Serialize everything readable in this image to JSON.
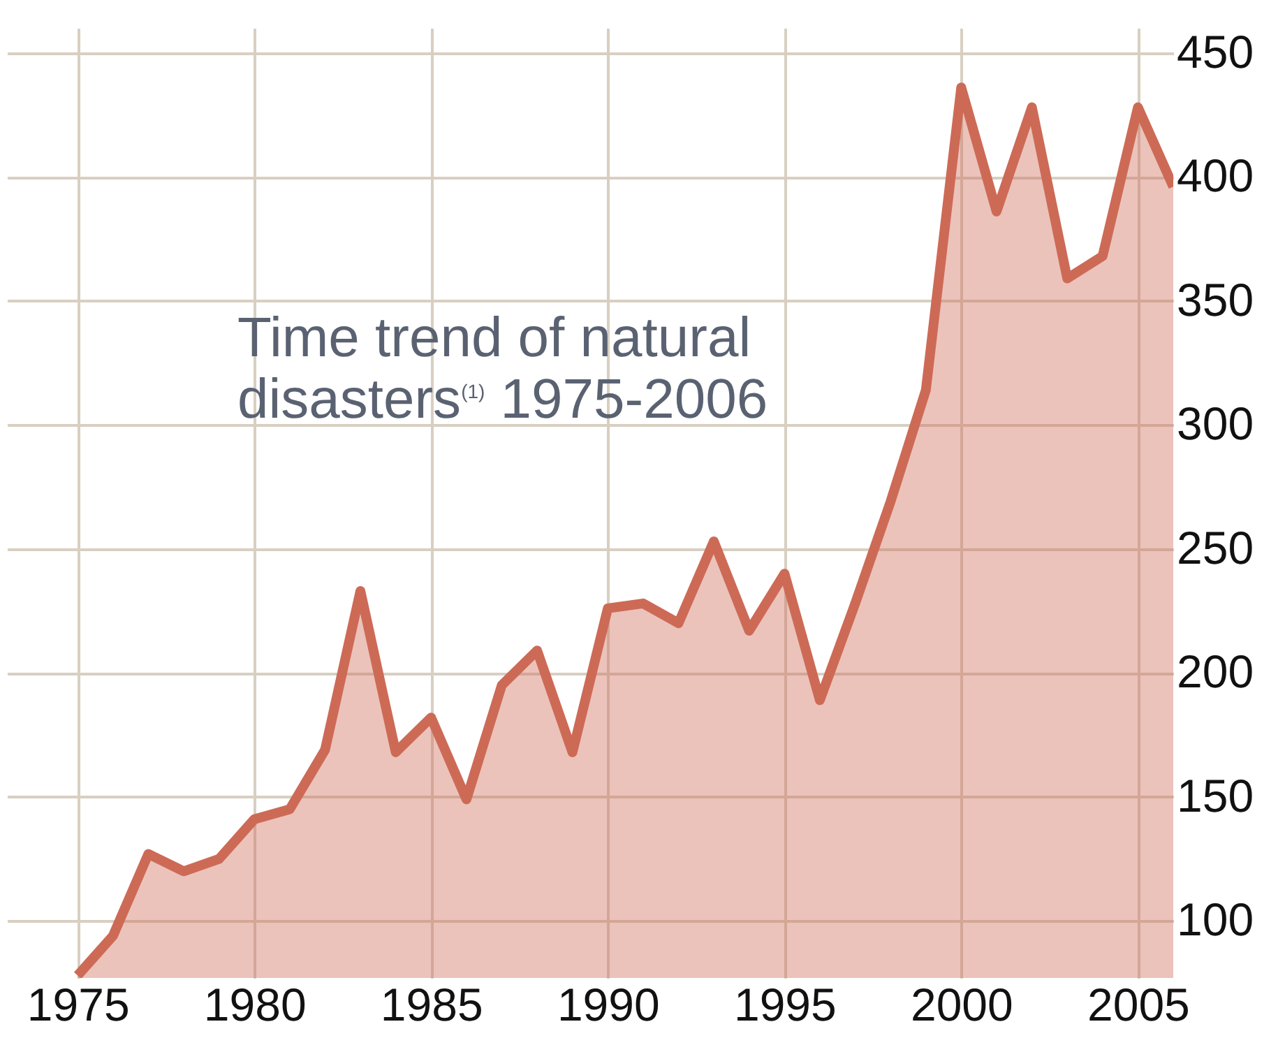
{
  "chart_data": {
    "type": "area",
    "title": "Time trend of natural disasters$^{(1)}$ 1975-2006",
    "x": [
      1975,
      1976,
      1977,
      1978,
      1979,
      1980,
      1981,
      1982,
      1983,
      1984,
      1985,
      1986,
      1987,
      1988,
      1989,
      1990,
      1991,
      1992,
      1993,
      1994,
      1995,
      1996,
      1997,
      1998,
      1999,
      2000,
      2001,
      2002,
      2003,
      2004,
      2005,
      2006
    ],
    "series": [
      {
        "color": "#cd6a56",
        "values": [
          78,
          94,
          127,
          120,
          125,
          141,
          145,
          169,
          233,
          168,
          182,
          149,
          195,
          209,
          168,
          226,
          228,
          220,
          253,
          217,
          240,
          189,
          228,
          269,
          314,
          436,
          386,
          428,
          359,
          368,
          428,
          396
        ]
      }
    ],
    "xlim": [
      1973,
      2006
    ],
    "xticks": [
      1975,
      1980,
      1985,
      1990,
      1995,
      2000,
      2005
    ],
    "ylim": [
      77,
      460
    ],
    "yticks": [
      100,
      150,
      200,
      250,
      300,
      350,
      400,
      450
    ],
    "grid": true
  }
}
